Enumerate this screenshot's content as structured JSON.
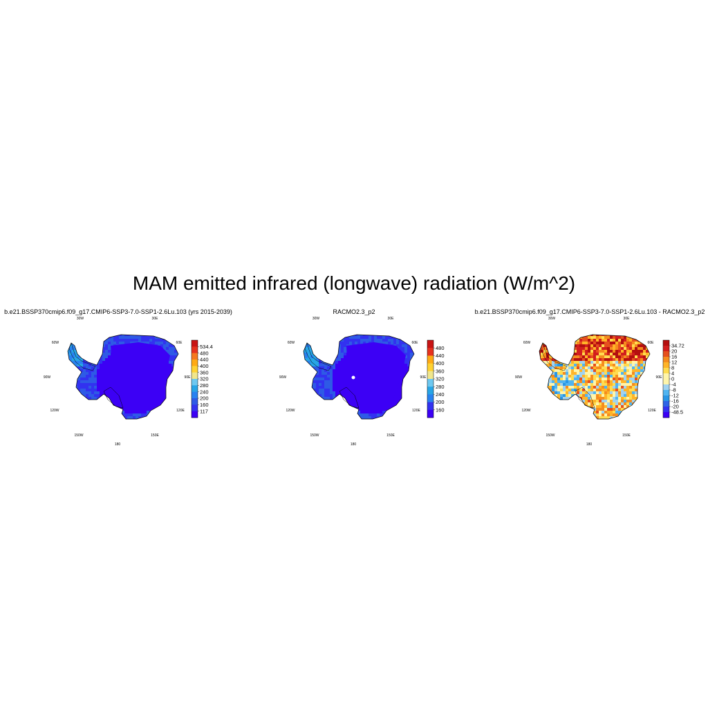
{
  "figure": {
    "title": "MAM emitted infrared (longwave) radiation (W/m^2)"
  },
  "colors": {
    "scale_abs": [
      "#3c00f5",
      "#3232f0",
      "#2e5ae6",
      "#2882f0",
      "#28a5e6",
      "#6ec8f0",
      "#aadcf0",
      "#f0e68c",
      "#ffd232",
      "#ffaa14",
      "#f5781e",
      "#e6321e",
      "#c81414"
    ],
    "scale_diff": [
      "#3c00f5",
      "#3232f0",
      "#2e64e6",
      "#2896e6",
      "#50b4f0",
      "#a0d2f0",
      "#fff5aa",
      "#ffdc50",
      "#ffb428",
      "#f58c1e",
      "#e6501e",
      "#d21e1e",
      "#b40f0f"
    ],
    "coast": "#000000"
  },
  "panels": [
    {
      "title": "b.e21.BSSP370cmip6.f09_g17.CMIP6-SSP3-7.0-SSP1-2.6Lu.103 (yrs 2015-2039)",
      "colorbar_labels": [
        "534.4",
        "480",
        "440",
        "400",
        "360",
        "320",
        "280",
        "240",
        "200",
        "160",
        "117"
      ],
      "field": "model",
      "ice_color": "#3c00f5",
      "rim_color": "#3232f0"
    },
    {
      "title": "RACMO2.3_p2",
      "colorbar_labels": [
        "480",
        "440",
        "400",
        "360",
        "320",
        "280",
        "240",
        "200",
        "160"
      ],
      "field": "obs",
      "ice_color": "#3c00f5",
      "rim_color": "#3232f0"
    },
    {
      "title": "b.e21.BSSP370cmip6.f09_g17.CMIP6-SSP3-7.0-SSP1-2.6Lu.103 - RACMO2.3_p2",
      "colorbar_labels": [
        "34.72",
        "20",
        "16",
        "12",
        "8",
        "4",
        "0",
        "-4",
        "-8",
        "-12",
        "-16",
        "-20",
        "-48.5"
      ],
      "field": "diff",
      "ice_color": "#ffd232",
      "rim_color": "#e6321e"
    }
  ],
  "longitude_labels": [
    "30W",
    "30E",
    "60W",
    "60E",
    "90W",
    "90E",
    "120W",
    "120E",
    "150W",
    "150E",
    "180"
  ]
}
